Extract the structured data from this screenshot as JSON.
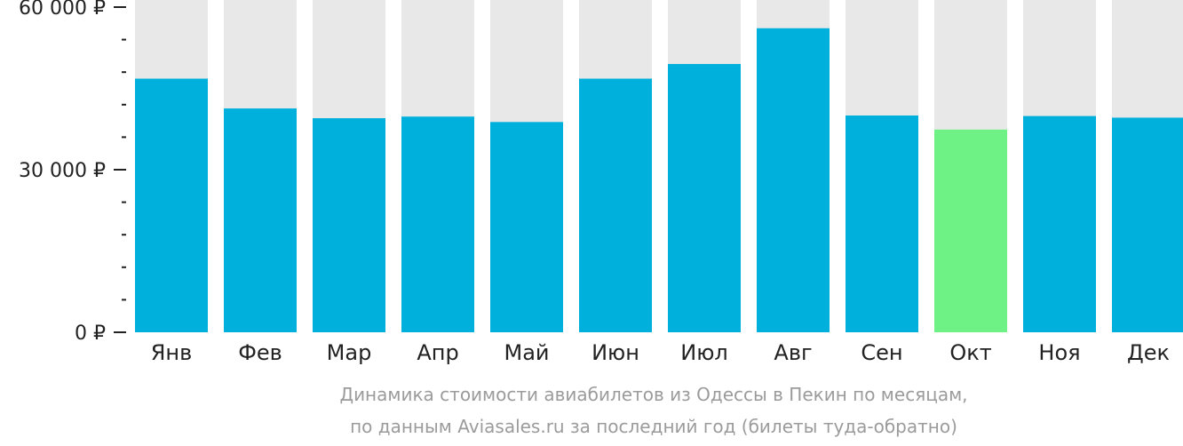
{
  "chart_data": {
    "type": "bar",
    "categories": [
      "Янв",
      "Фев",
      "Мар",
      "Апр",
      "Май",
      "Июн",
      "Июл",
      "Авг",
      "Сен",
      "Окт",
      "Ноя",
      "Дек"
    ],
    "values": [
      46800,
      41300,
      39500,
      39800,
      38800,
      46800,
      49500,
      56100,
      40000,
      37400,
      39900,
      39600
    ],
    "ylim": [
      0,
      60000
    ],
    "y_ticks": [
      {
        "value": 0,
        "label": "0 ₽"
      },
      {
        "value": 30000,
        "label": "30 000 ₽"
      },
      {
        "value": 60000,
        "label": "60 000 ₽"
      }
    ],
    "y_minor_step": 6000,
    "highlight_index": 9,
    "colors": {
      "bar": "#00b0dc",
      "highlight": "#6ef286",
      "background_bar": "#e8e8e8",
      "axis": "#222222",
      "caption": "#9b9b9b"
    }
  },
  "caption": {
    "line1": "Динамика стоимости авиабилетов из Одессы в Пекин по месяцам,",
    "line2": "по данным Aviasales.ru за последний год (билеты туда-обратно)"
  }
}
